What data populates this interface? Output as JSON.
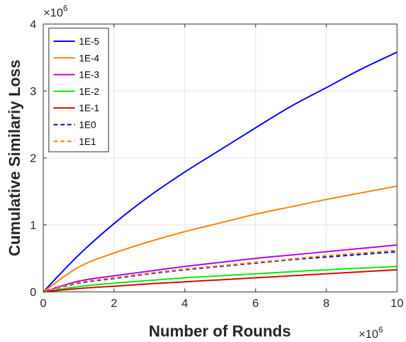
{
  "chart_data": {
    "type": "line",
    "xlabel": "Number of Rounds",
    "ylabel": "Cumulative Similariy Loss",
    "x_multiplier_base": "×10",
    "x_multiplier_exp": "6",
    "y_multiplier_base": "×10",
    "y_multiplier_exp": "6",
    "xlim": [
      0,
      10
    ],
    "ylim": [
      0,
      4
    ],
    "xticks": [
      "0",
      "2",
      "4",
      "6",
      "8",
      "10"
    ],
    "yticks": [
      "0",
      "1",
      "2",
      "3",
      "4"
    ],
    "grid": true,
    "legend_position": "top-left",
    "x": [
      0,
      1,
      2,
      3,
      4,
      5,
      6,
      7,
      8,
      9,
      10
    ],
    "series": [
      {
        "name": "1E-5",
        "color": "#0000ff",
        "dashed": false,
        "values": [
          0,
          0.55,
          1.02,
          1.43,
          1.79,
          2.12,
          2.45,
          2.77,
          3.05,
          3.33,
          3.58
        ]
      },
      {
        "name": "1E-4",
        "color": "#ff8000",
        "dashed": false,
        "values": [
          0,
          0.37,
          0.58,
          0.75,
          0.9,
          1.03,
          1.16,
          1.27,
          1.38,
          1.48,
          1.58
        ]
      },
      {
        "name": "1E-3",
        "color": "#b000ff",
        "dashed": false,
        "values": [
          0,
          0.16,
          0.24,
          0.31,
          0.38,
          0.44,
          0.5,
          0.55,
          0.6,
          0.65,
          0.7
        ]
      },
      {
        "name": "1E-2",
        "color": "#00ee00",
        "dashed": false,
        "values": [
          0,
          0.08,
          0.13,
          0.17,
          0.21,
          0.24,
          0.27,
          0.3,
          0.33,
          0.355,
          0.38
        ]
      },
      {
        "name": "1E-1",
        "color": "#dd0000",
        "dashed": false,
        "values": [
          0,
          0.05,
          0.085,
          0.12,
          0.15,
          0.18,
          0.21,
          0.24,
          0.27,
          0.3,
          0.33
        ]
      },
      {
        "name": "1E0",
        "color": "#0000bb",
        "dashed": true,
        "values": [
          0,
          0.13,
          0.2,
          0.27,
          0.33,
          0.38,
          0.43,
          0.48,
          0.52,
          0.56,
          0.6
        ]
      },
      {
        "name": "1E1",
        "color": "#ff8000",
        "dashed": true,
        "values": [
          0,
          0.14,
          0.21,
          0.28,
          0.34,
          0.39,
          0.44,
          0.49,
          0.54,
          0.58,
          0.62
        ]
      }
    ]
  }
}
